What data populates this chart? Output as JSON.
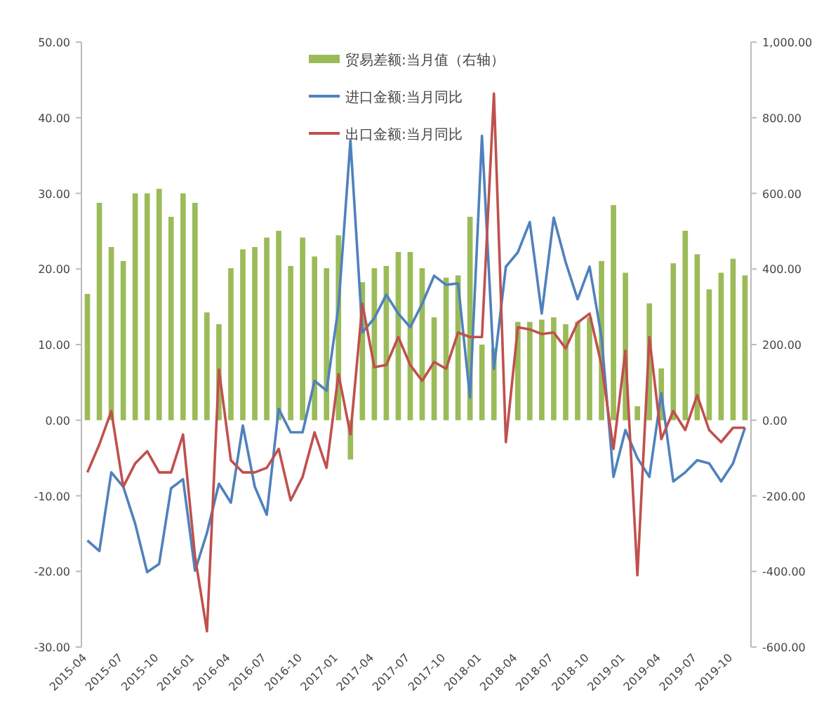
{
  "chart_data": {
    "type": "bar",
    "legend": "top",
    "grid": false,
    "categories": [
      "2015-04",
      null,
      null,
      "2015-07",
      null,
      null,
      "2015-10",
      null,
      null,
      "2016-01",
      null,
      null,
      "2016-04",
      null,
      null,
      "2016-07",
      null,
      null,
      "2016-10",
      null,
      null,
      "2017-01",
      null,
      null,
      "2017-04",
      null,
      null,
      "2017-07",
      null,
      null,
      "2017-10",
      null,
      null,
      "2018-01",
      null,
      null,
      "2018-04",
      null,
      null,
      "2018-07",
      null,
      null,
      "2018-10",
      null,
      null,
      "2019-01",
      null,
      null,
      "2019-04",
      null,
      null,
      "2019-07",
      null,
      null,
      "2019-10",
      null
    ],
    "ylim": [
      -30,
      50
    ],
    "yticks": [
      {
        "value": -30,
        "label": "-30.00"
      },
      {
        "value": -20,
        "label": "-20.00"
      },
      {
        "value": -10,
        "label": "-10.00"
      },
      {
        "value": 0,
        "label": "0.00"
      },
      {
        "value": 10,
        "label": "10.00"
      },
      {
        "value": 20,
        "label": "20.00"
      },
      {
        "value": 30,
        "label": "30.00"
      },
      {
        "value": 40,
        "label": "40.00"
      },
      {
        "value": 50,
        "label": "50.00"
      }
    ],
    "y2lim": [
      -600,
      1000
    ],
    "y2ticks": [
      {
        "value": -600,
        "label": "-600.00"
      },
      {
        "value": -400,
        "label": "-400.00"
      },
      {
        "value": -200,
        "label": "-200.00"
      },
      {
        "value": 0,
        "label": "0.00"
      },
      {
        "value": 200,
        "label": "200.00"
      },
      {
        "value": 400,
        "label": "400.00"
      },
      {
        "value": 600,
        "label": "600.00"
      },
      {
        "value": 800,
        "label": "800.00"
      },
      {
        "value": 1000,
        "label": "1,000.00"
      }
    ],
    "series": [
      {
        "name": "贸易差额:当月值（右轴）",
        "axis": "y2",
        "color": "#9bbb59",
        "values": [
          334,
          575,
          458,
          421,
          600,
          600,
          612,
          538,
          600,
          575,
          285,
          254,
          402,
          452,
          458,
          483,
          501,
          408,
          483,
          433,
          402,
          489,
          -104,
          365,
          402,
          408,
          445,
          445,
          402,
          272,
          377,
          383,
          538,
          200,
          190,
          null,
          260,
          260,
          266,
          272,
          254,
          260,
          272,
          421,
          569,
          390,
          37,
          309,
          137,
          415,
          501,
          439,
          346,
          390,
          427,
          383
        ]
      },
      {
        "name": "进口金额:当月同比",
        "type": "line",
        "axis": "y",
        "color": "#4f81bd",
        "values": [
          -15.9,
          -17.3,
          -6.9,
          -8.8,
          -13.7,
          -20.1,
          -19.0,
          -9.0,
          -7.8,
          -19.9,
          -14.9,
          -8.4,
          -10.9,
          -0.7,
          -8.8,
          -12.5,
          1.5,
          -1.6,
          -1.6,
          5.2,
          3.9,
          15,
          37.0,
          11.6,
          13.5,
          16.6,
          14.1,
          12.3,
          15.4,
          19.1,
          17.9,
          18.1,
          3,
          37.6,
          6.8,
          20.3,
          22.2,
          26.2,
          14.1,
          26.8,
          20.9,
          16,
          20.3,
          11,
          -7.5,
          -1.3,
          -5,
          -7.5,
          3.6,
          -8.1,
          -6.9,
          -5.3,
          -5.7,
          -8.1,
          -5.7,
          -1.0
        ]
      },
      {
        "name": "出口金额:当月同比",
        "type": "line",
        "axis": "y",
        "color": "#c0504d",
        "values": [
          -6.9,
          -3.2,
          1.2,
          -8.8,
          -5.7,
          -4.1,
          -6.9,
          -6.9,
          -1.9,
          -18.0,
          -27.9,
          6.7,
          -5.3,
          -6.9,
          -6.9,
          -6.3,
          -3.8,
          -10.6,
          -7.5,
          -1.6,
          -6.3,
          6.1,
          -1.9,
          15.4,
          7.0,
          7.3,
          11,
          7.3,
          5.2,
          7.7,
          6.8,
          11.6,
          11,
          11,
          43.2,
          -2.9,
          12.3,
          12.0,
          11.4,
          11.6,
          9.5,
          12.9,
          14.1,
          7.3,
          -3.8,
          9.2,
          -20.5,
          11,
          -2.5,
          1.2,
          -1.3,
          3.3,
          -1.3,
          -2.9,
          -1.0,
          -1.0
        ]
      }
    ]
  }
}
